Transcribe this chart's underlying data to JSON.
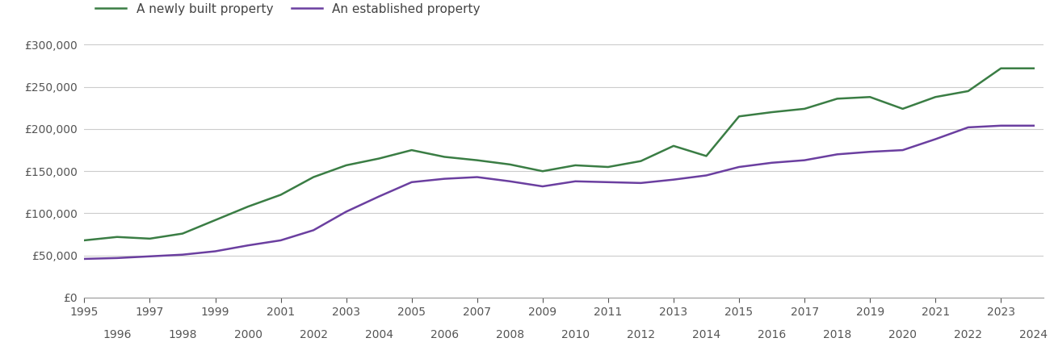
{
  "legend_new": "A newly built property",
  "legend_established": "An established property",
  "color_new": "#3a7d44",
  "color_established": "#6b3fa0",
  "background_color": "#ffffff",
  "ylim": [
    0,
    310000
  ],
  "yticks": [
    0,
    50000,
    100000,
    150000,
    200000,
    250000,
    300000
  ],
  "ytick_labels": [
    "£0",
    "£50,000",
    "£100,000",
    "£150,000",
    "£200,000",
    "£250,000",
    "£300,000"
  ],
  "years_new": [
    1995,
    1996,
    1997,
    1998,
    1999,
    2000,
    2001,
    2002,
    2003,
    2004,
    2005,
    2006,
    2007,
    2008,
    2009,
    2010,
    2011,
    2012,
    2013,
    2014,
    2015,
    2016,
    2017,
    2018,
    2019,
    2020,
    2021,
    2022,
    2023,
    2024
  ],
  "values_new": [
    68000,
    72000,
    70000,
    76000,
    92000,
    108000,
    122000,
    143000,
    157000,
    165000,
    175000,
    167000,
    163000,
    158000,
    150000,
    157000,
    155000,
    162000,
    180000,
    168000,
    215000,
    220000,
    224000,
    236000,
    238000,
    224000,
    238000,
    245000,
    272000,
    272000
  ],
  "years_established": [
    1995,
    1996,
    1997,
    1998,
    1999,
    2000,
    2001,
    2002,
    2003,
    2004,
    2005,
    2006,
    2007,
    2008,
    2009,
    2010,
    2011,
    2012,
    2013,
    2014,
    2015,
    2016,
    2017,
    2018,
    2019,
    2020,
    2021,
    2022,
    2023,
    2024
  ],
  "values_established": [
    46000,
    47000,
    49000,
    51000,
    55000,
    62000,
    68000,
    80000,
    102000,
    120000,
    137000,
    141000,
    143000,
    138000,
    132000,
    138000,
    137000,
    136000,
    140000,
    145000,
    155000,
    160000,
    163000,
    170000,
    173000,
    175000,
    188000,
    202000,
    204000,
    204000
  ],
  "xticks_odd": [
    1995,
    1997,
    1999,
    2001,
    2003,
    2005,
    2007,
    2009,
    2011,
    2013,
    2015,
    2017,
    2019,
    2021,
    2023
  ],
  "xticks_even": [
    1996,
    1998,
    2000,
    2002,
    2004,
    2006,
    2008,
    2010,
    2012,
    2014,
    2016,
    2018,
    2020,
    2022,
    2024
  ],
  "xlim": [
    1995,
    2024.3
  ],
  "line_width": 1.8,
  "grid_color": "#cccccc",
  "tick_label_color": "#555555",
  "tick_fontsize": 10,
  "legend_fontsize": 11
}
